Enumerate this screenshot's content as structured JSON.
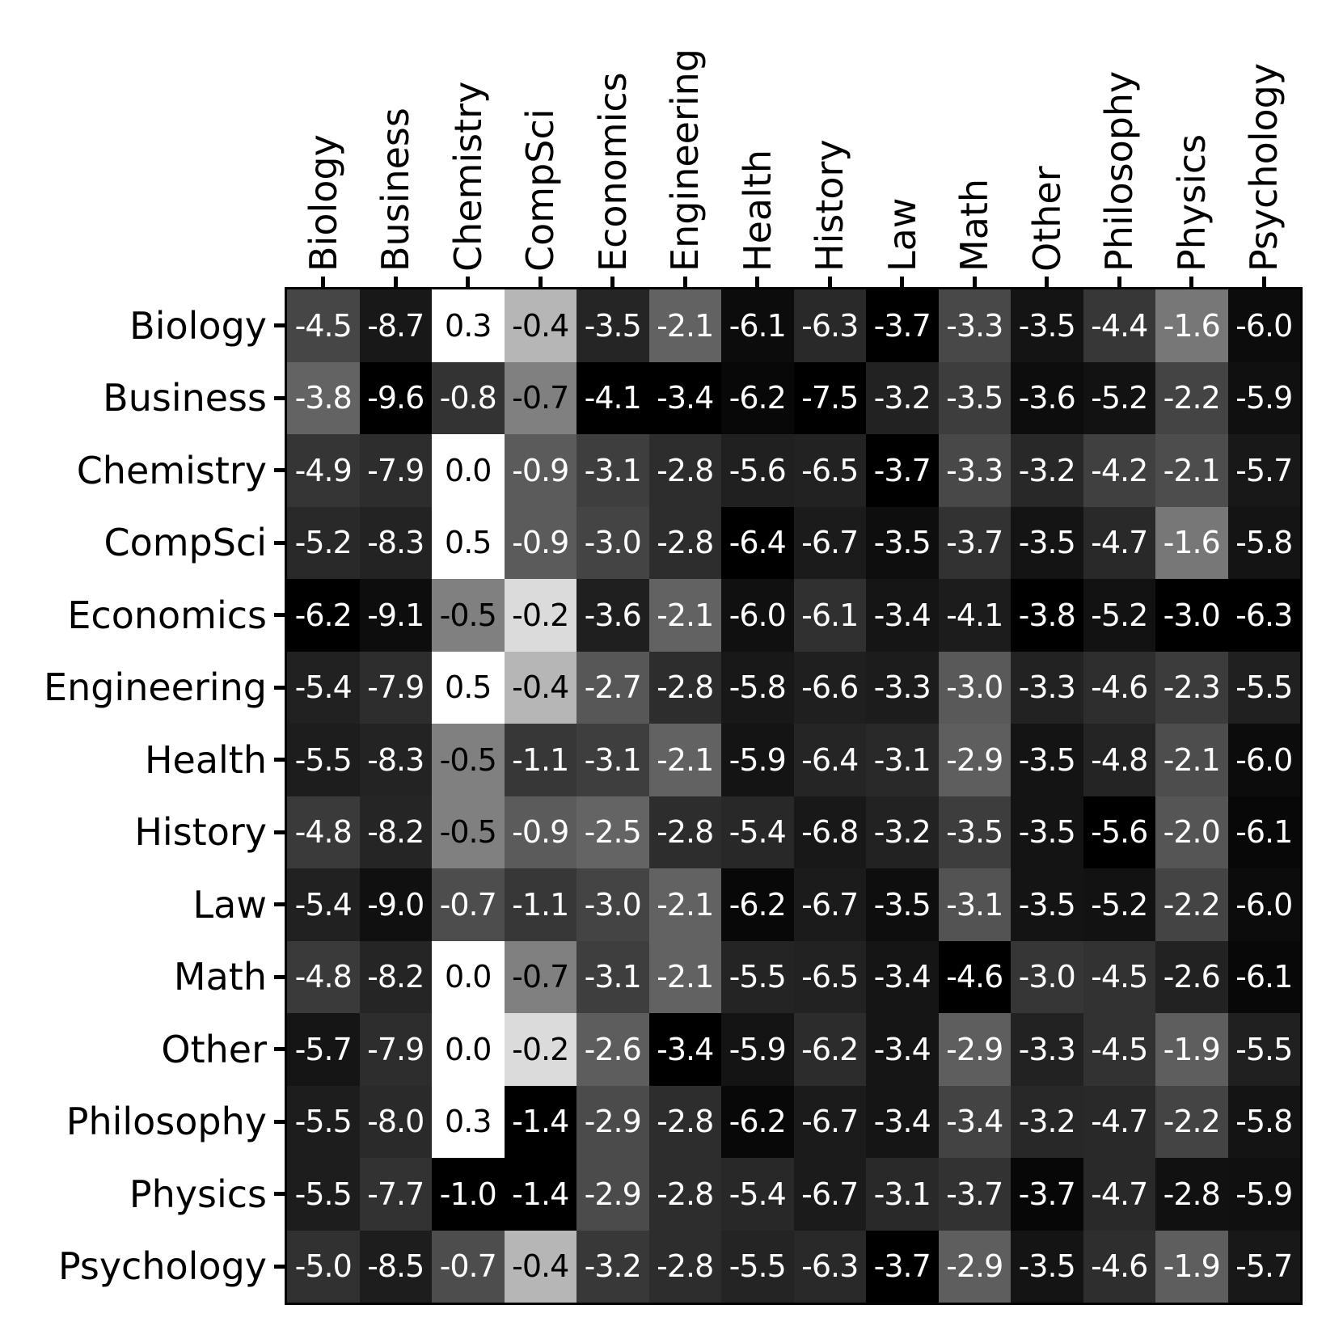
{
  "figure": {
    "background_color": "#ffffff",
    "axis_color": "#000000",
    "cell_text_light": "#ffffff",
    "cell_text_dark": "#000000"
  },
  "chart_data": {
    "type": "heatmap",
    "title": "",
    "xlabel": "",
    "ylabel": "",
    "legend": "none",
    "grid": false,
    "x_categories": [
      "Biology",
      "Business",
      "Chemistry",
      "CompSci",
      "Economics",
      "Engineering",
      "Health",
      "History",
      "Law",
      "Math",
      "Other",
      "Philosophy",
      "Physics",
      "Psychology"
    ],
    "y_categories": [
      "Biology",
      "Business",
      "Chemistry",
      "CompSci",
      "Economics",
      "Engineering",
      "Health",
      "History",
      "Law",
      "Math",
      "Other",
      "Philosophy",
      "Physics",
      "Psychology"
    ],
    "value_format": "one decimal place",
    "color_scale": "grayscale per column: black at column minimum, white at 0 (values above 0 clipped to white); cell text black when shade >= 50%, else white",
    "matrix": [
      [
        -4.5,
        -8.7,
        0.3,
        -0.4,
        -3.5,
        -2.1,
        -6.1,
        -6.3,
        -3.7,
        -3.3,
        -3.5,
        -4.4,
        -1.6,
        -6.0
      ],
      [
        -3.8,
        -9.6,
        -0.8,
        -0.7,
        -4.1,
        -3.4,
        -6.2,
        -7.5,
        -3.2,
        -3.5,
        -3.6,
        -5.2,
        -2.2,
        -5.9
      ],
      [
        -4.9,
        -7.9,
        0.0,
        -0.9,
        -3.1,
        -2.8,
        -5.6,
        -6.5,
        -3.7,
        -3.3,
        -3.2,
        -4.2,
        -2.1,
        -5.7
      ],
      [
        -5.2,
        -8.3,
        0.5,
        -0.9,
        -3.0,
        -2.8,
        -6.4,
        -6.7,
        -3.5,
        -3.7,
        -3.5,
        -4.7,
        -1.6,
        -5.8
      ],
      [
        -6.2,
        -9.1,
        -0.5,
        -0.2,
        -3.6,
        -2.1,
        -6.0,
        -6.1,
        -3.4,
        -4.1,
        -3.8,
        -5.2,
        -3.0,
        -6.3
      ],
      [
        -5.4,
        -7.9,
        0.5,
        -0.4,
        -2.7,
        -2.8,
        -5.8,
        -6.6,
        -3.3,
        -3.0,
        -3.3,
        -4.6,
        -2.3,
        -5.5
      ],
      [
        -5.5,
        -8.3,
        -0.5,
        -1.1,
        -3.1,
        -2.1,
        -5.9,
        -6.4,
        -3.1,
        -2.9,
        -3.5,
        -4.8,
        -2.1,
        -6.0
      ],
      [
        -4.8,
        -8.2,
        -0.5,
        -0.9,
        -2.5,
        -2.8,
        -5.4,
        -6.8,
        -3.2,
        -3.5,
        -3.5,
        -5.6,
        -2.0,
        -6.1
      ],
      [
        -5.4,
        -9.0,
        -0.7,
        -1.1,
        -3.0,
        -2.1,
        -6.2,
        -6.7,
        -3.5,
        -3.1,
        -3.5,
        -5.2,
        -2.2,
        -6.0
      ],
      [
        -4.8,
        -8.2,
        0.0,
        -0.7,
        -3.1,
        -2.1,
        -5.5,
        -6.5,
        -3.4,
        -4.6,
        -3.0,
        -4.5,
        -2.6,
        -6.1
      ],
      [
        -5.7,
        -7.9,
        0.0,
        -0.2,
        -2.6,
        -3.4,
        -5.9,
        -6.2,
        -3.4,
        -2.9,
        -3.3,
        -4.5,
        -1.9,
        -5.5
      ],
      [
        -5.5,
        -8.0,
        0.3,
        -1.4,
        -2.9,
        -2.8,
        -6.2,
        -6.7,
        -3.4,
        -3.4,
        -3.2,
        -4.7,
        -2.2,
        -5.8
      ],
      [
        -5.5,
        -7.7,
        -1.0,
        -1.4,
        -2.9,
        -2.8,
        -5.4,
        -6.7,
        -3.1,
        -3.7,
        -3.7,
        -4.7,
        -2.8,
        -5.9
      ],
      [
        -5.0,
        -8.5,
        -0.7,
        -0.4,
        -3.2,
        -2.8,
        -5.5,
        -6.3,
        -3.7,
        -2.9,
        -3.5,
        -4.6,
        -1.9,
        -5.7
      ]
    ]
  }
}
